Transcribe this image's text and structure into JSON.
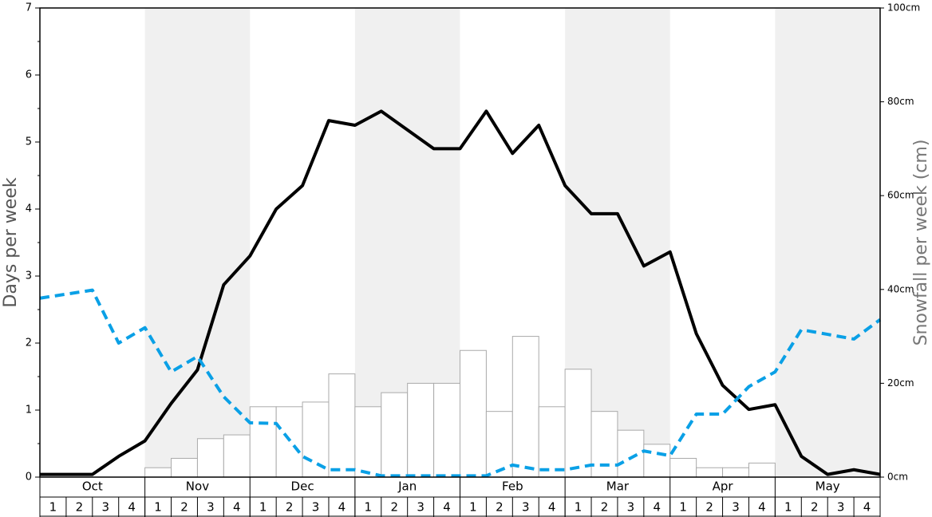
{
  "chart_data": {
    "type": "bar",
    "y_label": "Days per week",
    "y2_label": "Snowfall per week (cm)",
    "months": [
      "Oct",
      "Nov",
      "Dec",
      "Jan",
      "Feb",
      "Mar",
      "Apr",
      "May"
    ],
    "categories": [
      "1",
      "2",
      "3",
      "4",
      "1",
      "2",
      "3",
      "4",
      "1",
      "2",
      "3",
      "4",
      "1",
      "2",
      "3",
      "4",
      "1",
      "2",
      "3",
      "4",
      "1",
      "2",
      "3",
      "4",
      "1",
      "2",
      "3",
      "4",
      "1",
      "2",
      "3",
      "4"
    ],
    "x": [
      0,
      1,
      2,
      3,
      4,
      5,
      6,
      7,
      8,
      9,
      10,
      11,
      12,
      13,
      14,
      15,
      16,
      17,
      18,
      19,
      20,
      21,
      22,
      23,
      24,
      25,
      26,
      27,
      28,
      29,
      30,
      31,
      32
    ],
    "xlim": [
      0,
      32
    ],
    "ylim": [
      0,
      7
    ],
    "yticks": [
      0,
      1,
      2,
      3,
      4,
      5,
      6,
      7
    ],
    "yminorticks": [
      0.5,
      1.5,
      2.5,
      3.5,
      4.5,
      5.5,
      6.5
    ],
    "y2lim": [
      0,
      100
    ],
    "y2ticks": [
      {
        "value": 0,
        "label": "0cm"
      },
      {
        "value": 20,
        "label": "20cm"
      },
      {
        "value": 40,
        "label": "40cm"
      },
      {
        "value": 60,
        "label": "60cm"
      },
      {
        "value": 80,
        "label": "80cm"
      },
      {
        "value": 100,
        "label": "100cm"
      }
    ],
    "shade_color": "#f0f0f0",
    "series": [
      {
        "type": "bar",
        "axis": "y2",
        "color": "#ffffff",
        "edge": "#aaaaaa",
        "values": [
          0,
          0,
          0,
          0,
          2,
          4,
          8.2,
          9,
          15,
          15,
          16,
          22,
          15,
          18,
          20,
          20,
          27,
          14,
          30,
          15,
          23,
          14,
          10,
          7,
          4,
          2,
          2,
          3,
          0,
          0,
          0,
          0
        ]
      },
      {
        "type": "line",
        "color": "#000000",
        "dashed": false,
        "values": [
          0.04,
          0.04,
          0.04,
          0.31,
          0.54,
          1.1,
          1.6,
          2.87,
          3.3,
          4.0,
          4.35,
          5.32,
          5.25,
          5.46,
          5.18,
          4.9,
          4.9,
          5.46,
          4.83,
          5.25,
          4.35,
          3.93,
          3.93,
          3.15,
          3.36,
          2.14,
          1.37,
          1.01,
          1.08,
          0.31,
          0.04,
          0.11,
          0.04
        ]
      },
      {
        "type": "line",
        "color": "#0aa0e6",
        "dashed": true,
        "values": [
          2.67,
          2.73,
          2.79,
          2.0,
          2.23,
          1.57,
          1.8,
          1.2,
          0.81,
          0.8,
          0.31,
          0.11,
          0.11,
          0.02,
          0.02,
          0.02,
          0.02,
          0.02,
          0.18,
          0.11,
          0.11,
          0.18,
          0.18,
          0.39,
          0.32,
          0.94,
          0.94,
          1.35,
          1.57,
          2.2,
          2.13,
          2.06,
          2.35
        ]
      }
    ]
  }
}
